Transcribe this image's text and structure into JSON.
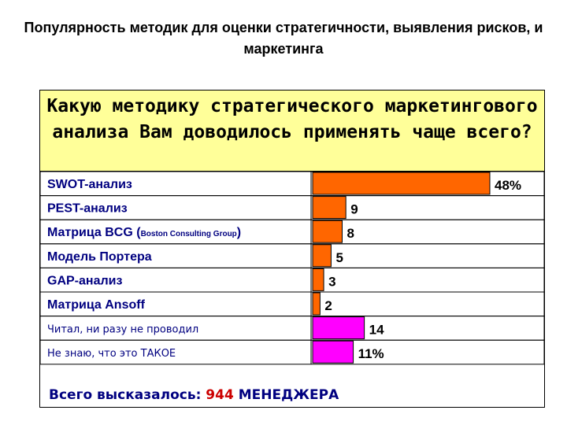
{
  "title": "Популярность методик для оценки стратегичности, выявления рисков, и маркетинга",
  "question": "Какую методику стратегического маркетингового анализа Вам доводилось применять чаще всего?",
  "footer": {
    "prefix": "Всего высказалось:",
    "count": "944",
    "suffix": "МЕНЕДЖЕРА"
  },
  "colors": {
    "bar_method": "#ff6600",
    "bar_other": "#ff00ff",
    "question_bg": "#ffff99",
    "label_text": "#000080"
  },
  "chart_data": {
    "type": "bar",
    "orientation": "horizontal",
    "title": "Популярность методик для оценки стратегичности, выявления рисков, и маркетинга",
    "categories": [
      "SWOT-анализ",
      "PEST-анализ",
      "Матрица BCG (Boston Consulting Group)",
      "Модель Портера",
      "GAP-анализ",
      "Матрица Ansoff",
      "Читал, ни разу не проводил",
      "Не знаю, что это ТАКОЕ"
    ],
    "category_parts": [
      {
        "main": "SWOT-анализ"
      },
      {
        "main": "PEST-анализ"
      },
      {
        "main": "Матрица BCG (",
        "small": "Boston Consulting Group",
        "tail": ")"
      },
      {
        "main": "Модель Портера"
      },
      {
        "main": "GAP-анализ"
      },
      {
        "main": "Матрица Ansoff"
      },
      {
        "main": "Читал, ни разу не проводил"
      },
      {
        "main": "Не знаю, что это ТАКОЕ"
      }
    ],
    "values": [
      48,
      9,
      8,
      5,
      3,
      2,
      14,
      11
    ],
    "value_labels": [
      "48%",
      "9",
      "8",
      "5",
      "3",
      "2",
      "14",
      "11%"
    ],
    "groups": [
      "method",
      "method",
      "method",
      "method",
      "method",
      "method",
      "other",
      "other"
    ],
    "xlim": [
      0,
      48
    ],
    "grid": false,
    "legend": "none"
  }
}
